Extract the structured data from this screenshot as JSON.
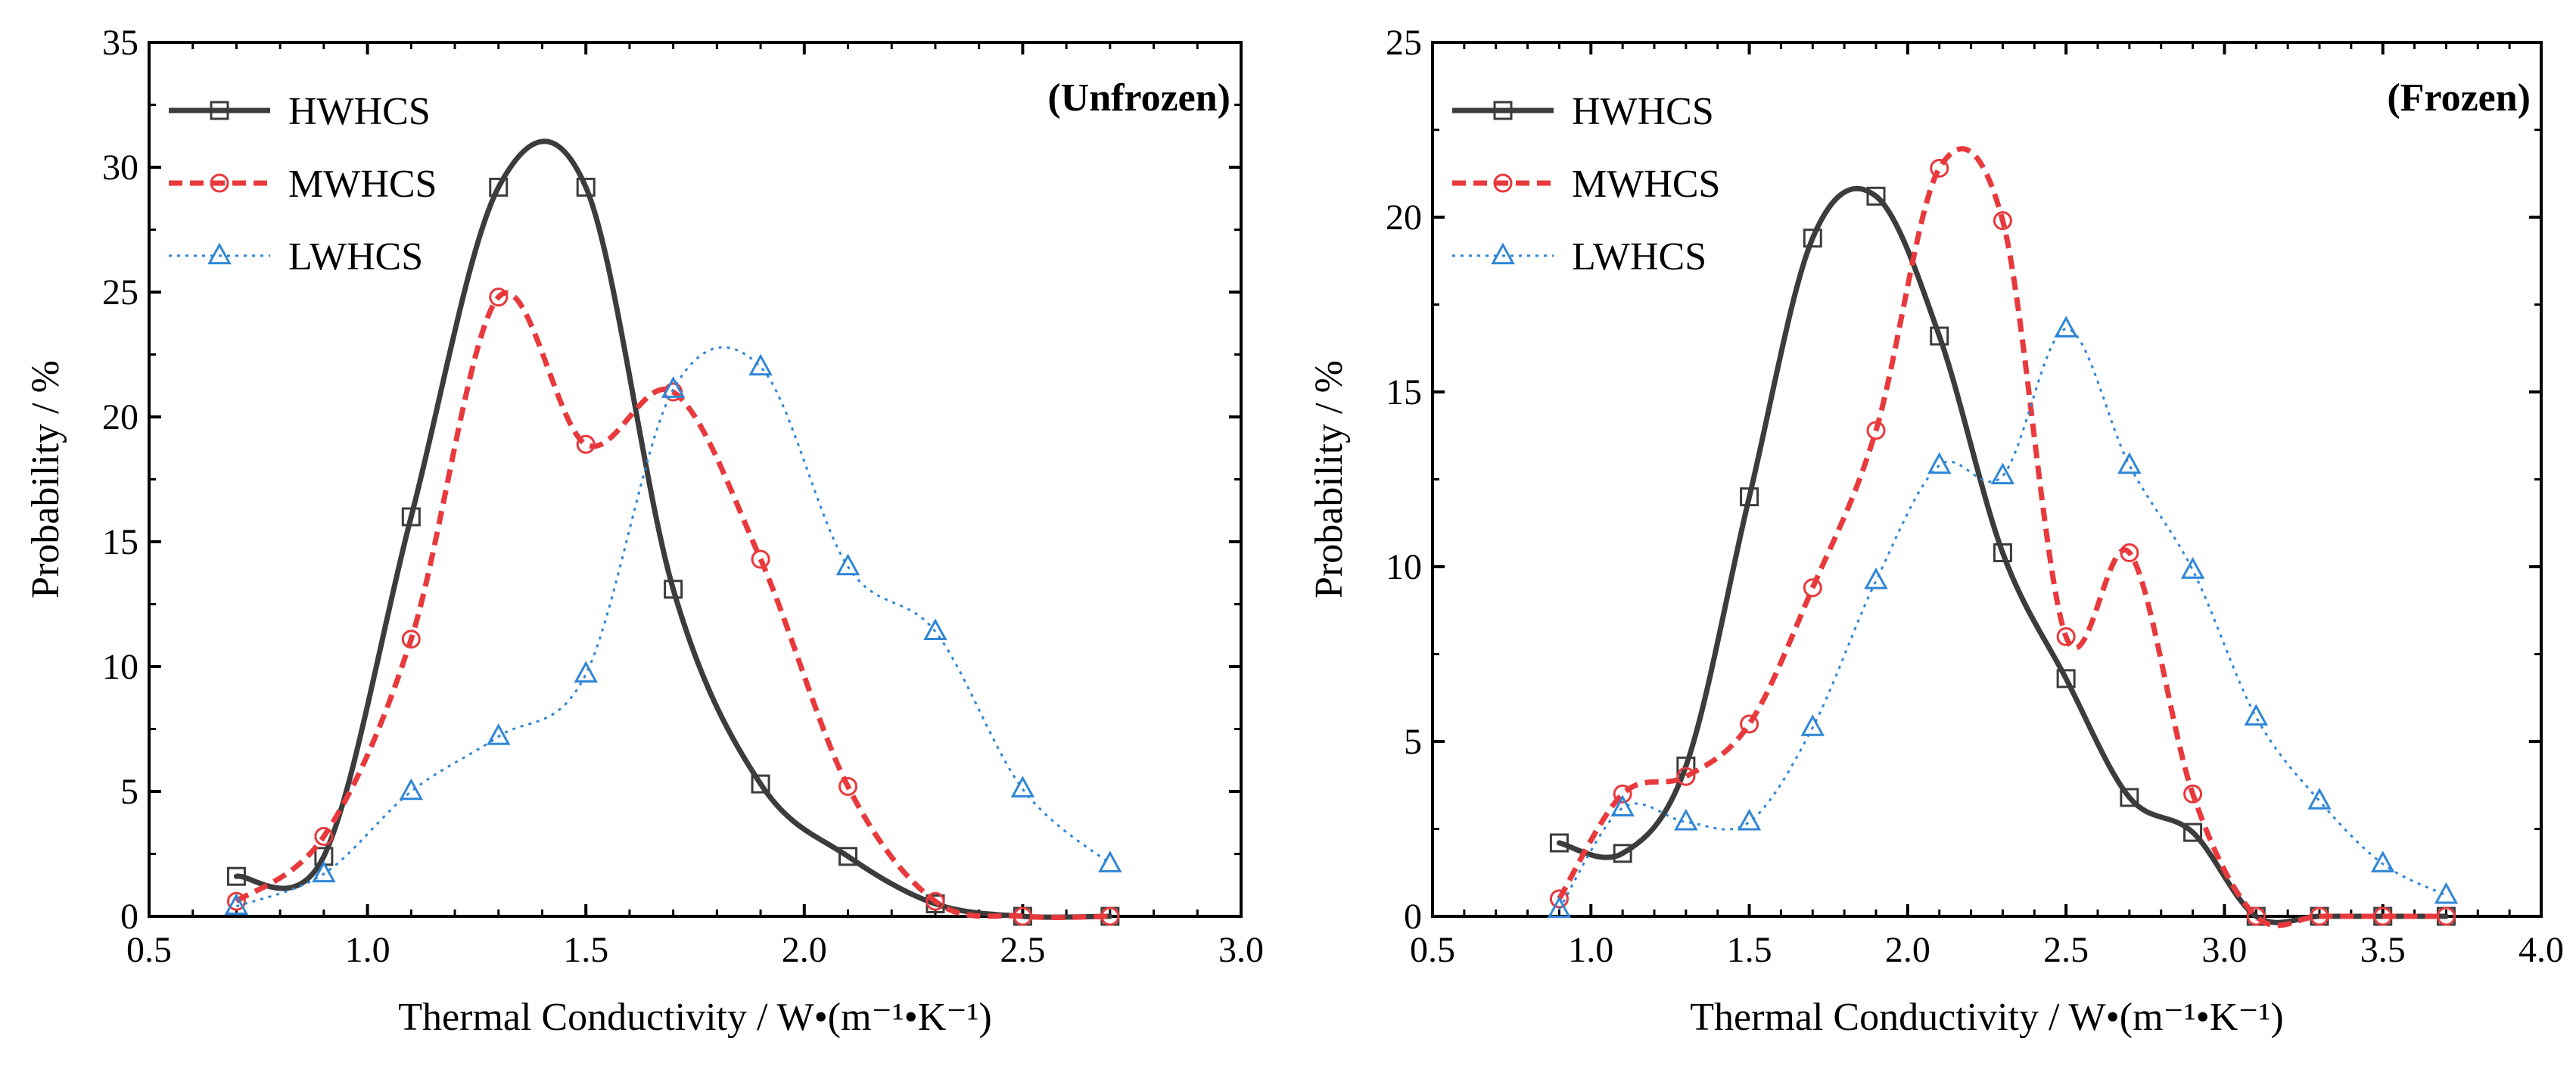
{
  "colors": {
    "HWHCS": "#3c3c3c",
    "MWHCS": "#e8393c",
    "LWHCS": "#2f86d6"
  },
  "chart_data": [
    {
      "type": "line",
      "panel_label": "(Unfrozen)",
      "xlabel": "Thermal Conductivity / W•(m⁻¹•K⁻¹)",
      "ylabel": "Probability / %",
      "xlim": [
        0.5,
        3.0
      ],
      "ylim": [
        0,
        35
      ],
      "xticks": [
        0.5,
        1.0,
        1.5,
        2.0,
        2.5,
        3.0
      ],
      "xtick_labels": [
        "0.5",
        "1.0",
        "1.5",
        "2.0",
        "2.5",
        "3.0"
      ],
      "yticks": [
        0,
        5,
        10,
        15,
        20,
        25,
        30,
        35
      ],
      "ytick_labels": [
        "0",
        "5",
        "10",
        "15",
        "20",
        "25",
        "30",
        "35"
      ],
      "legend_position": "top-left",
      "series": [
        {
          "name": "HWHCS",
          "marker": "square",
          "style": "solid",
          "x": [
            0.7,
            0.9,
            1.1,
            1.3,
            1.5,
            1.7,
            1.9,
            2.1,
            2.3,
            2.5,
            2.7
          ],
          "y": [
            1.6,
            2.4,
            16.0,
            29.2,
            29.2,
            13.1,
            5.3,
            2.4,
            0.5,
            0.0,
            0.0
          ]
        },
        {
          "name": "MWHCS",
          "marker": "circle",
          "style": "dashed",
          "x": [
            0.7,
            0.9,
            1.1,
            1.3,
            1.5,
            1.7,
            1.9,
            2.1,
            2.3,
            2.5,
            2.7
          ],
          "y": [
            0.6,
            3.2,
            11.1,
            24.8,
            18.9,
            21.0,
            14.3,
            5.2,
            0.6,
            0.0,
            0.0
          ]
        },
        {
          "name": "LWHCS",
          "marker": "triangle",
          "style": "dotted",
          "x": [
            0.7,
            0.9,
            1.1,
            1.3,
            1.5,
            1.7,
            1.9,
            2.1,
            2.3,
            2.5,
            2.7
          ],
          "y": [
            0.4,
            1.7,
            5.0,
            7.2,
            9.7,
            21.1,
            22.0,
            14.0,
            11.4,
            5.1,
            2.1
          ]
        }
      ]
    },
    {
      "type": "line",
      "panel_label": "(Frozen)",
      "xlabel": "Thermal Conductivity / W•(m⁻¹•K⁻¹)",
      "ylabel": "Probability / %",
      "xlim": [
        0.5,
        4.0
      ],
      "ylim": [
        0,
        25
      ],
      "xticks": [
        0.5,
        1.0,
        1.5,
        2.0,
        2.5,
        3.0,
        3.5,
        4.0
      ],
      "xtick_labels": [
        "0.5",
        "1.0",
        "1.5",
        "2.0",
        "2.5",
        "3.0",
        "3.5",
        "4.0"
      ],
      "yticks": [
        0,
        5,
        10,
        15,
        20,
        25
      ],
      "ytick_labels": [
        "0",
        "5",
        "10",
        "15",
        "20",
        "25"
      ],
      "legend_position": "top-left",
      "series": [
        {
          "name": "HWHCS",
          "marker": "square",
          "style": "solid",
          "x": [
            0.9,
            1.1,
            1.3,
            1.5,
            1.7,
            1.9,
            2.1,
            2.3,
            2.5,
            2.7,
            2.9,
            3.1,
            3.3,
            3.5,
            3.7
          ],
          "y": [
            2.1,
            1.8,
            4.3,
            12.0,
            19.4,
            20.6,
            16.6,
            10.4,
            6.8,
            3.4,
            2.4,
            0.0,
            0.0,
            0.0,
            0.0
          ]
        },
        {
          "name": "MWHCS",
          "marker": "circle",
          "style": "dashed",
          "x": [
            0.9,
            1.1,
            1.3,
            1.5,
            1.7,
            1.9,
            2.1,
            2.3,
            2.5,
            2.7,
            2.9,
            3.1,
            3.3,
            3.5,
            3.7
          ],
          "y": [
            0.5,
            3.5,
            4.0,
            5.5,
            9.4,
            13.9,
            21.4,
            19.9,
            8.0,
            10.4,
            3.5,
            0.0,
            0.0,
            0.0,
            0.0
          ]
        },
        {
          "name": "LWHCS",
          "marker": "triangle",
          "style": "dotted",
          "x": [
            0.9,
            1.1,
            1.3,
            1.5,
            1.7,
            1.9,
            2.1,
            2.3,
            2.5,
            2.7,
            2.9,
            3.1,
            3.3,
            3.5,
            3.7
          ],
          "y": [
            0.2,
            3.1,
            2.7,
            2.7,
            5.4,
            9.6,
            12.9,
            12.6,
            16.8,
            12.9,
            9.9,
            5.7,
            3.3,
            1.5,
            0.6
          ]
        }
      ]
    }
  ]
}
